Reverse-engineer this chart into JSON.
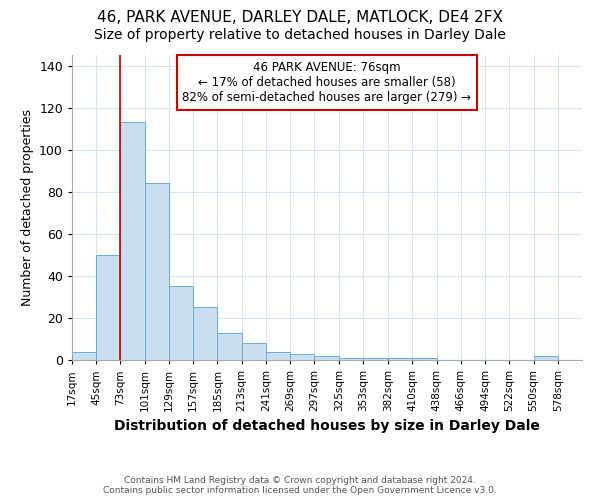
{
  "title1": "46, PARK AVENUE, DARLEY DALE, MATLOCK, DE4 2FX",
  "title2": "Size of property relative to detached houses in Darley Dale",
  "xlabel": "Distribution of detached houses by size in Darley Dale",
  "ylabel": "Number of detached properties",
  "bins": [
    17,
    45,
    73,
    101,
    129,
    157,
    185,
    213,
    241,
    269,
    297,
    325,
    353,
    382,
    410,
    438,
    466,
    494,
    522,
    550,
    578
  ],
  "bar_heights": [
    4,
    50,
    113,
    84,
    35,
    25,
    13,
    8,
    4,
    3,
    2,
    1,
    1,
    1,
    1,
    0,
    0,
    0,
    0,
    2
  ],
  "bar_color": "#c9dff0",
  "bar_edge_color": "#6aaed6",
  "red_line_x": 73,
  "annotation_line1": "46 PARK AVENUE: 76sqm",
  "annotation_line2": "← 17% of detached houses are smaller (58)",
  "annotation_line3": "82% of semi-detached houses are larger (279) →",
  "annotation_box_color": "#ffffff",
  "annotation_border_color": "#cc0000",
  "ylim": [
    0,
    145
  ],
  "yticks": [
    0,
    20,
    40,
    60,
    80,
    100,
    120,
    140
  ],
  "footer_line1": "Contains HM Land Registry data © Crown copyright and database right 2024.",
  "footer_line2": "Contains public sector information licensed under the Open Government Licence v3.0.",
  "bg_color": "#ffffff",
  "plot_bg_color": "#ffffff",
  "grid_color": "#d8e4ee",
  "title1_fontsize": 11,
  "title2_fontsize": 10,
  "xlabel_fontsize": 10,
  "ylabel_fontsize": 9
}
